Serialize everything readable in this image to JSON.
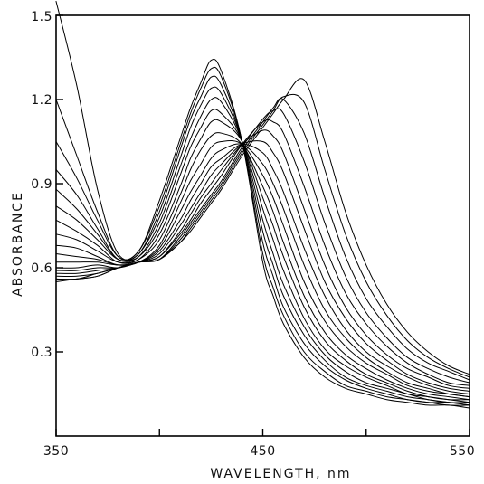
{
  "chart_data": {
    "type": "line",
    "title": "",
    "xlabel": "WAVELENGTH, nm",
    "ylabel": "ABSORBANCE",
    "xlim": [
      350,
      550
    ],
    "ylim": [
      0.0,
      1.5
    ],
    "x_ticks": [
      350,
      400,
      450,
      500,
      550
    ],
    "x_tick_labels": [
      "350",
      "",
      "450",
      "",
      "550"
    ],
    "y_ticks": [
      0.3,
      0.6,
      0.9,
      1.2,
      1.5
    ],
    "y_tick_labels": [
      "0.3",
      "0.6",
      "0.9",
      "1.2",
      "1.5"
    ],
    "grid": false,
    "legend": "none",
    "colors": {
      "line": "#000000",
      "background": "#ffffff"
    },
    "series_description_points": [
      350,
      360,
      370,
      380,
      390,
      400,
      410,
      415,
      420,
      425,
      430,
      440,
      450,
      455,
      460,
      470,
      480,
      490,
      500,
      510,
      520,
      530,
      540,
      550
    ],
    "series": [
      {
        "y": [
          1.55,
          1.25,
          0.88,
          0.65,
          0.66,
          0.84,
          1.06,
          1.17,
          1.26,
          1.34,
          1.3,
          1.05,
          0.62,
          0.5,
          0.4,
          0.28,
          0.21,
          0.17,
          0.15,
          0.13,
          0.12,
          0.11,
          0.11,
          0.1
        ]
      },
      {
        "y": [
          1.2,
          1.0,
          0.8,
          0.64,
          0.66,
          0.82,
          1.04,
          1.15,
          1.24,
          1.31,
          1.28,
          1.05,
          0.65,
          0.53,
          0.43,
          0.3,
          0.23,
          0.18,
          0.16,
          0.14,
          0.13,
          0.12,
          0.11,
          0.11
        ]
      },
      {
        "y": [
          1.05,
          0.92,
          0.77,
          0.64,
          0.65,
          0.8,
          1.02,
          1.13,
          1.21,
          1.28,
          1.25,
          1.05,
          0.69,
          0.57,
          0.46,
          0.33,
          0.25,
          0.2,
          0.17,
          0.15,
          0.13,
          0.12,
          0.12,
          0.11
        ]
      },
      {
        "y": [
          0.95,
          0.86,
          0.74,
          0.63,
          0.65,
          0.78,
          0.99,
          1.1,
          1.18,
          1.24,
          1.22,
          1.05,
          0.73,
          0.61,
          0.5,
          0.36,
          0.27,
          0.21,
          0.18,
          0.16,
          0.14,
          0.13,
          0.12,
          0.11
        ]
      },
      {
        "y": [
          0.88,
          0.81,
          0.72,
          0.63,
          0.64,
          0.76,
          0.96,
          1.06,
          1.14,
          1.2,
          1.19,
          1.05,
          0.77,
          0.65,
          0.54,
          0.39,
          0.29,
          0.23,
          0.19,
          0.17,
          0.15,
          0.13,
          0.12,
          0.12
        ]
      },
      {
        "y": [
          0.82,
          0.77,
          0.7,
          0.63,
          0.64,
          0.74,
          0.93,
          1.03,
          1.1,
          1.16,
          1.15,
          1.05,
          0.81,
          0.7,
          0.59,
          0.42,
          0.31,
          0.25,
          0.21,
          0.18,
          0.15,
          0.14,
          0.13,
          0.12
        ]
      },
      {
        "y": [
          0.77,
          0.73,
          0.68,
          0.62,
          0.63,
          0.72,
          0.89,
          0.99,
          1.06,
          1.12,
          1.12,
          1.05,
          0.85,
          0.75,
          0.64,
          0.46,
          0.34,
          0.27,
          0.22,
          0.19,
          0.16,
          0.14,
          0.13,
          0.13
        ]
      },
      {
        "y": [
          0.72,
          0.7,
          0.66,
          0.62,
          0.63,
          0.7,
          0.86,
          0.95,
          1.02,
          1.07,
          1.08,
          1.04,
          0.89,
          0.8,
          0.69,
          0.5,
          0.37,
          0.29,
          0.24,
          0.2,
          0.17,
          0.15,
          0.14,
          0.13
        ]
      },
      {
        "y": [
          0.68,
          0.67,
          0.64,
          0.61,
          0.62,
          0.68,
          0.83,
          0.91,
          0.97,
          1.03,
          1.05,
          1.04,
          0.93,
          0.85,
          0.75,
          0.55,
          0.41,
          0.32,
          0.26,
          0.22,
          0.18,
          0.16,
          0.15,
          0.14
        ]
      },
      {
        "y": [
          0.65,
          0.64,
          0.63,
          0.61,
          0.62,
          0.67,
          0.8,
          0.87,
          0.93,
          0.99,
          1.02,
          1.04,
          0.97,
          0.9,
          0.81,
          0.61,
          0.45,
          0.35,
          0.28,
          0.23,
          0.19,
          0.17,
          0.15,
          0.14
        ]
      },
      {
        "y": [
          0.62,
          0.62,
          0.62,
          0.61,
          0.62,
          0.66,
          0.77,
          0.84,
          0.9,
          0.96,
          0.99,
          1.04,
          1.01,
          0.95,
          0.87,
          0.67,
          0.5,
          0.38,
          0.3,
          0.25,
          0.21,
          0.18,
          0.16,
          0.15
        ]
      },
      {
        "y": [
          0.6,
          0.6,
          0.61,
          0.6,
          0.62,
          0.65,
          0.75,
          0.81,
          0.87,
          0.93,
          0.97,
          1.04,
          1.05,
          1.01,
          0.94,
          0.74,
          0.55,
          0.42,
          0.33,
          0.27,
          0.22,
          0.19,
          0.17,
          0.16
        ]
      },
      {
        "y": [
          0.59,
          0.59,
          0.6,
          0.6,
          0.62,
          0.64,
          0.73,
          0.79,
          0.85,
          0.9,
          0.95,
          1.04,
          1.09,
          1.07,
          1.01,
          0.81,
          0.61,
          0.46,
          0.36,
          0.29,
          0.24,
          0.21,
          0.18,
          0.17
        ]
      },
      {
        "y": [
          0.58,
          0.58,
          0.59,
          0.6,
          0.62,
          0.64,
          0.72,
          0.77,
          0.83,
          0.88,
          0.93,
          1.04,
          1.12,
          1.12,
          1.08,
          0.89,
          0.68,
          0.51,
          0.4,
          0.32,
          0.26,
          0.22,
          0.19,
          0.18
        ]
      },
      {
        "y": [
          0.57,
          0.57,
          0.58,
          0.6,
          0.62,
          0.63,
          0.71,
          0.76,
          0.81,
          0.86,
          0.91,
          1.03,
          1.13,
          1.16,
          1.15,
          0.98,
          0.76,
          0.57,
          0.44,
          0.35,
          0.28,
          0.24,
          0.21,
          0.19
        ]
      },
      {
        "y": [
          0.56,
          0.56,
          0.58,
          0.6,
          0.62,
          0.63,
          0.7,
          0.75,
          0.8,
          0.85,
          0.9,
          1.02,
          1.12,
          1.17,
          1.2,
          1.08,
          0.85,
          0.64,
          0.49,
          0.39,
          0.31,
          0.26,
          0.23,
          0.2
        ]
      },
      {
        "y": [
          0.56,
          0.56,
          0.57,
          0.6,
          0.62,
          0.63,
          0.69,
          0.74,
          0.79,
          0.84,
          0.89,
          1.01,
          1.11,
          1.16,
          1.21,
          1.19,
          0.95,
          0.72,
          0.55,
          0.43,
          0.34,
          0.28,
          0.24,
          0.21
        ]
      },
      {
        "y": [
          0.55,
          0.56,
          0.57,
          0.6,
          0.62,
          0.63,
          0.69,
          0.73,
          0.78,
          0.83,
          0.88,
          1.0,
          1.1,
          1.15,
          1.2,
          1.27,
          1.05,
          0.8,
          0.61,
          0.47,
          0.37,
          0.3,
          0.25,
          0.22
        ]
      }
    ]
  }
}
